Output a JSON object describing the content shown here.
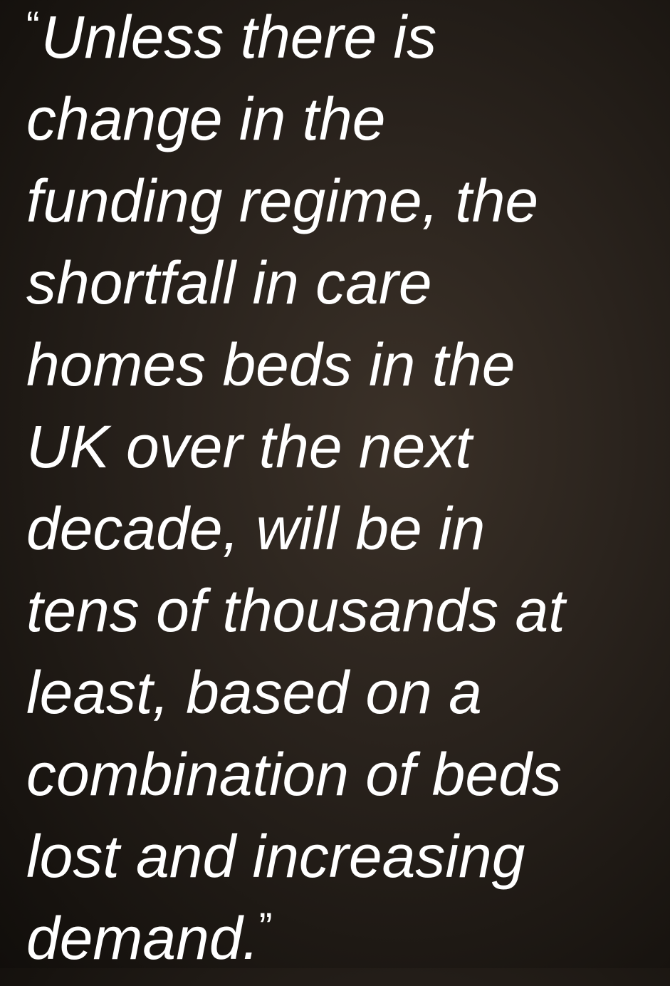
{
  "quote": {
    "open_mark": "“",
    "close_mark": "”",
    "lines": [
      "Unless there is",
      "change in the",
      "funding regime, the",
      "shortfall in care",
      "homes beds in the",
      "UK over the next",
      "decade, will be in",
      "tens of thousands at",
      "least, based on a",
      "combination of beds",
      "lost and increasing",
      "demand."
    ]
  }
}
